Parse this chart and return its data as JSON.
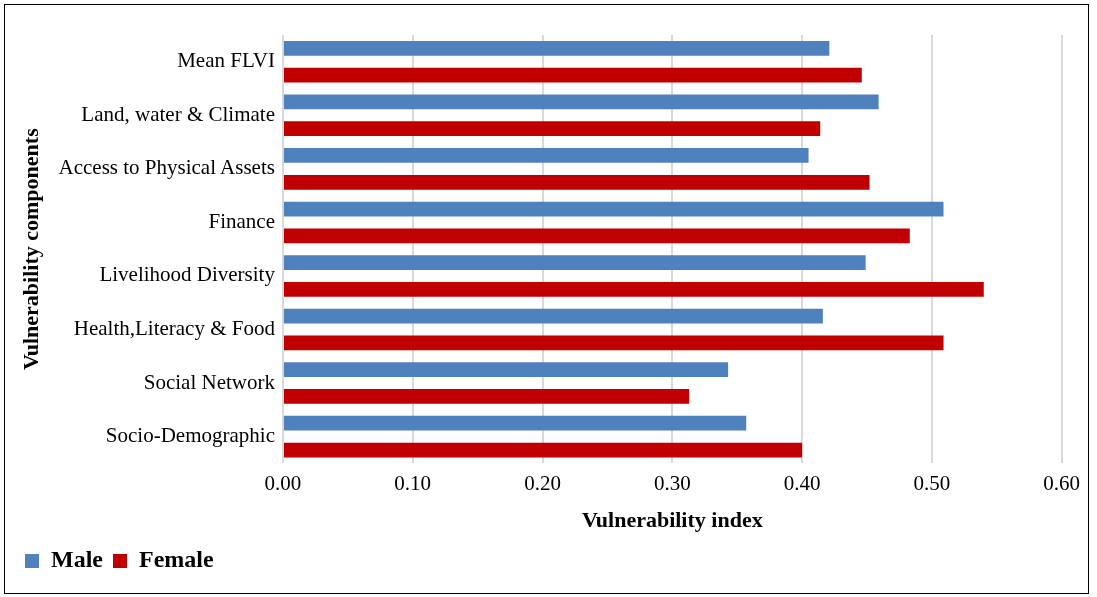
{
  "chart_data": {
    "type": "bar",
    "orientation": "horizontal",
    "xlabel": "Vulnerability index",
    "ylabel": "Vulnerability components",
    "categories": [
      "Mean FLVI",
      "Land, water & Climate",
      "Access to Physical Assets",
      "Finance",
      "Livelihood Diversity",
      "Health,Literacy & Food",
      "Social Network",
      "Socio-Demographic"
    ],
    "series": [
      {
        "name": "Male",
        "color": "#4f81bd",
        "values": [
          0.421,
          0.459,
          0.405,
          0.509,
          0.449,
          0.416,
          0.343,
          0.357
        ]
      },
      {
        "name": "Female",
        "color": "#c00000",
        "values": [
          0.446,
          0.414,
          0.452,
          0.483,
          0.54,
          0.509,
          0.313,
          0.4
        ]
      }
    ],
    "xlim": [
      0,
      0.6
    ],
    "xticks": [
      {
        "value": 0,
        "label": "0.00"
      },
      {
        "value": 0.1,
        "label": "0.10"
      },
      {
        "value": 0.2,
        "label": "0.20"
      },
      {
        "value": 0.3,
        "label": "0.30"
      },
      {
        "value": 0.4,
        "label": "0.40"
      },
      {
        "value": 0.5,
        "label": "0.50"
      },
      {
        "value": 0.6,
        "label": "0.60"
      }
    ],
    "grid": "x",
    "legend": "bottom left"
  }
}
